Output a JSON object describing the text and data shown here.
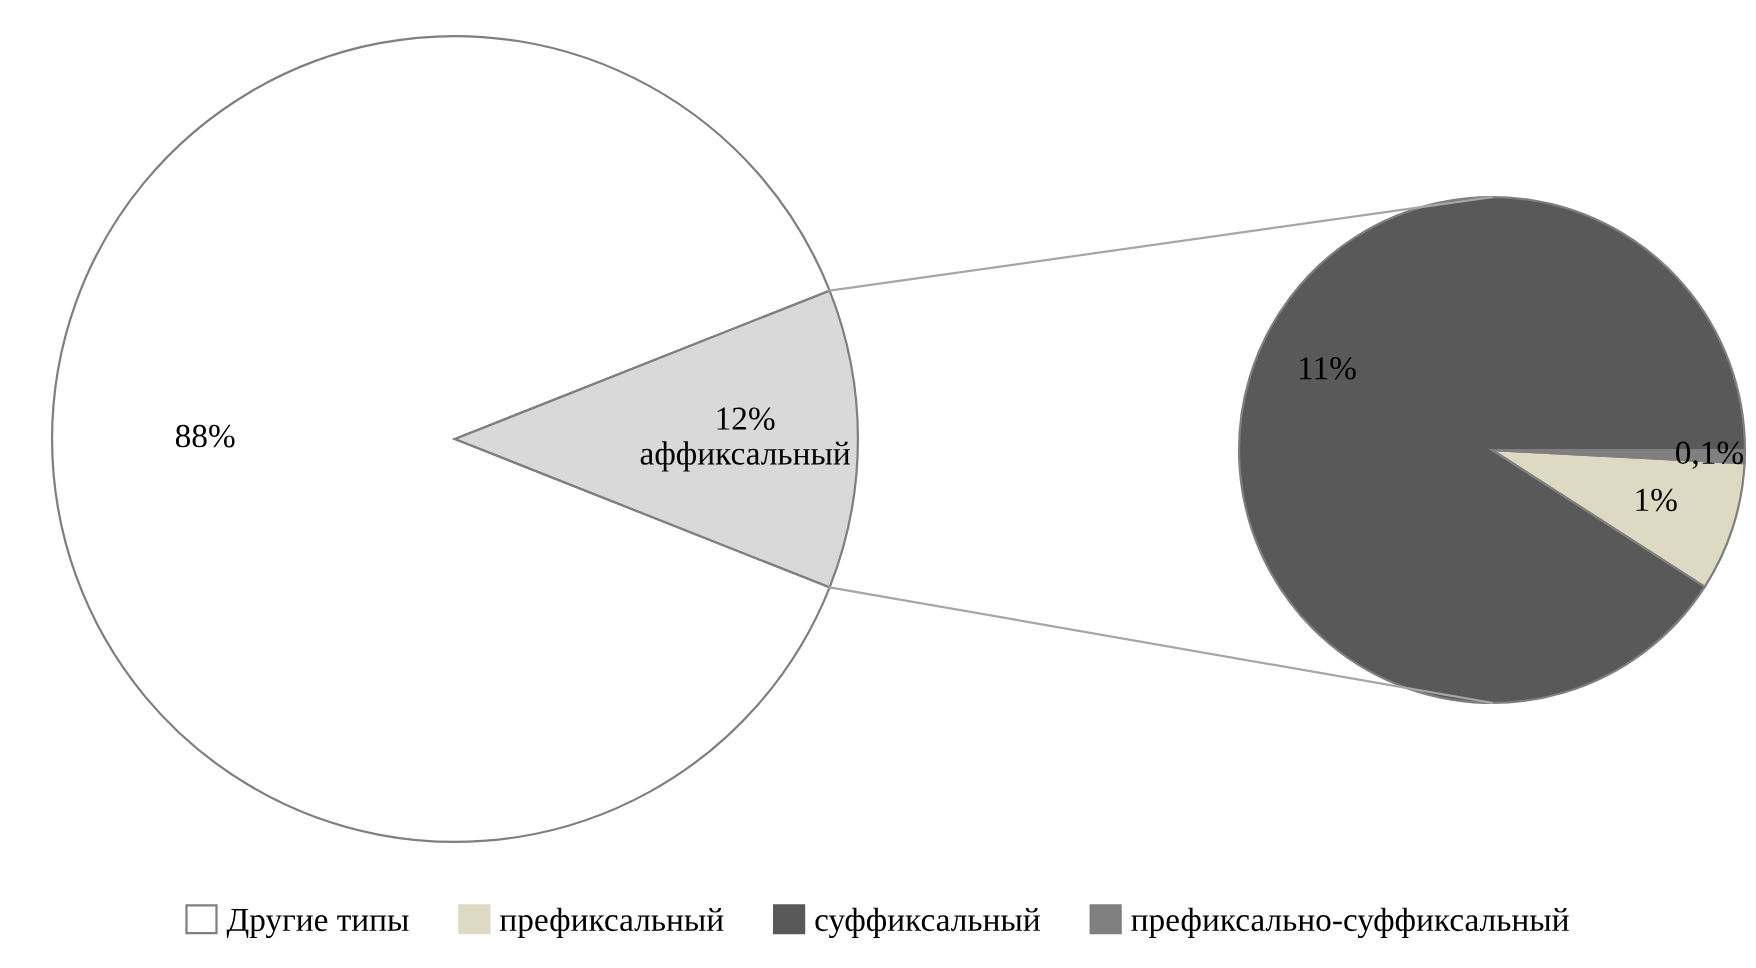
{
  "chart_data": [
    {
      "type": "pie",
      "categories": [
        "Другие типы",
        null
      ],
      "values": [
        88,
        12
      ],
      "colors": [
        "#ffffff",
        "#d9d9d9"
      ],
      "value_labels": [
        "88%",
        "12%\nаффиксальный"
      ],
      "legend": "bottom"
    },
    {
      "type": "pie",
      "categories": [
        "префиксальный",
        "суффиксальный",
        "префиксально-суффиксальный"
      ],
      "values": [
        1,
        11,
        0.1
      ],
      "colors": [
        "#ddd9c3",
        "#595959",
        "#808080"
      ],
      "value_labels": [
        "1%",
        "11%",
        "0,1%"
      ],
      "legend": "bottom"
    }
  ]
}
